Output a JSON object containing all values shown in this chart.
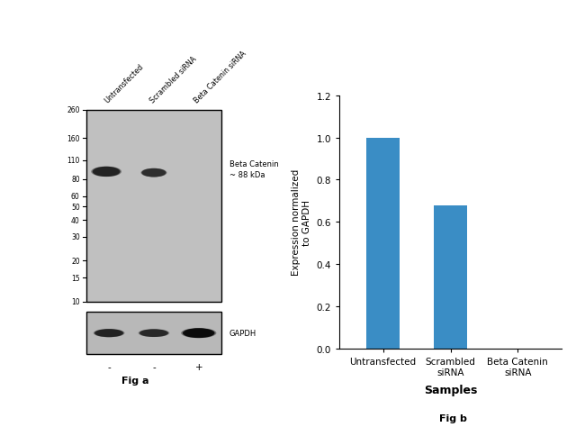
{
  "fig_width": 6.5,
  "fig_height": 4.85,
  "fig_background": "#ffffff",
  "wb_panel": {
    "lane_labels": [
      "Untransfected",
      "Scrambled siRNA",
      "Beta Catenin siRNA"
    ],
    "mw_markers": [
      260,
      160,
      110,
      80,
      60,
      50,
      40,
      30,
      20,
      15,
      10
    ],
    "main_band_annotation": "Beta Catenin\n~ 88 kDa",
    "gapdh_label": "GAPDH",
    "lane_signs": [
      "-",
      "-",
      "+"
    ],
    "fig_label": "Fig a",
    "panel_bg": "#c0c0c0",
    "gapdh_bg": "#b8b8b8",
    "border_color": "#000000"
  },
  "bar_panel": {
    "categories": [
      "Untransfected",
      "Scrambled\nsiRNA",
      "Beta Catenin\nsiRNA"
    ],
    "values": [
      1.0,
      0.68,
      0.0
    ],
    "bar_color": "#3A8DC5",
    "ylabel": "Expression normalized\nto GAPDH",
    "xlabel": "Samples",
    "ylim": [
      0,
      1.2
    ],
    "yticks": [
      0,
      0.2,
      0.4,
      0.6,
      0.8,
      1.0,
      1.2
    ],
    "fig_label": "Fig b"
  }
}
